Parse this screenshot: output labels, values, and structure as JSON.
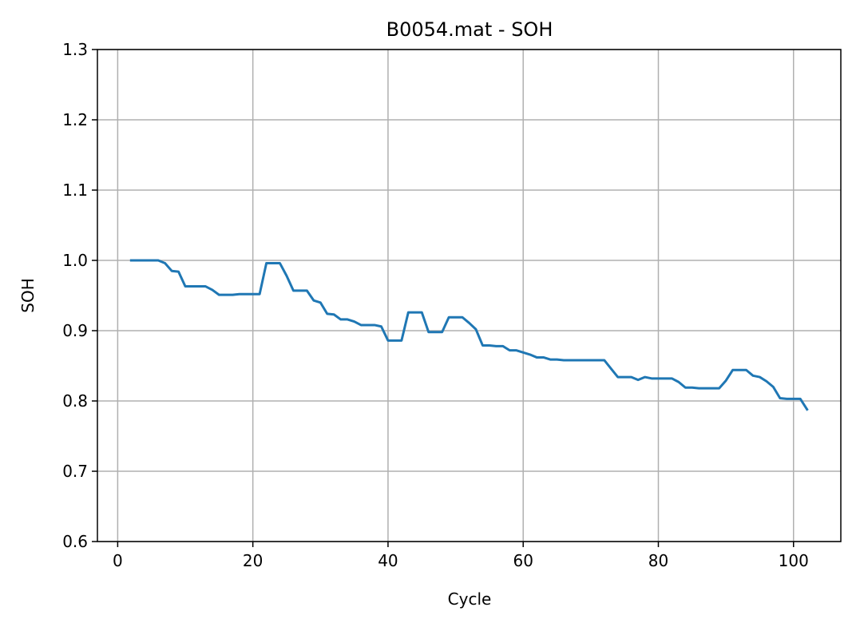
{
  "chart_data": {
    "type": "line",
    "title": "B0054.mat - SOH",
    "xlabel": "Cycle",
    "ylabel": "SOH",
    "xlim": [
      -3,
      107
    ],
    "ylim": [
      0.6,
      1.3
    ],
    "xticks": [
      0,
      20,
      40,
      60,
      80,
      100
    ],
    "yticks": [
      0.6,
      0.7,
      0.8,
      0.9,
      1.0,
      1.1,
      1.2,
      1.3
    ],
    "grid": true,
    "series": [
      {
        "color": "#1f77b4",
        "x": [
          2,
          3,
          4,
          5,
          6,
          7,
          8,
          9,
          10,
          11,
          12,
          13,
          14,
          15,
          16,
          17,
          18,
          19,
          20,
          21,
          22,
          23,
          24,
          25,
          26,
          27,
          28,
          29,
          30,
          31,
          32,
          33,
          34,
          35,
          36,
          37,
          38,
          39,
          40,
          41,
          42,
          43,
          44,
          45,
          46,
          47,
          48,
          49,
          50,
          51,
          52,
          53,
          54,
          55,
          56,
          57,
          58,
          59,
          60,
          61,
          62,
          63,
          64,
          65,
          66,
          67,
          68,
          69,
          70,
          71,
          72,
          73,
          74,
          75,
          76,
          77,
          78,
          79,
          80,
          81,
          82,
          83,
          84,
          85,
          86,
          87,
          88,
          89,
          90,
          91,
          92,
          93,
          94,
          95,
          96,
          97,
          98,
          99,
          100,
          101,
          102
        ],
        "y": [
          1.0,
          1.0,
          1.0,
          1.0,
          1.0,
          0.996,
          0.985,
          0.984,
          0.963,
          0.963,
          0.963,
          0.963,
          0.958,
          0.951,
          0.951,
          0.951,
          0.952,
          0.952,
          0.952,
          0.952,
          0.996,
          0.996,
          0.996,
          0.978,
          0.957,
          0.957,
          0.957,
          0.943,
          0.94,
          0.924,
          0.923,
          0.916,
          0.916,
          0.913,
          0.908,
          0.908,
          0.908,
          0.906,
          0.886,
          0.886,
          0.886,
          0.926,
          0.926,
          0.926,
          0.898,
          0.898,
          0.898,
          0.919,
          0.919,
          0.919,
          0.911,
          0.902,
          0.879,
          0.879,
          0.878,
          0.878,
          0.872,
          0.872,
          0.869,
          0.866,
          0.862,
          0.862,
          0.859,
          0.859,
          0.858,
          0.858,
          0.858,
          0.858,
          0.858,
          0.858,
          0.858,
          0.846,
          0.834,
          0.834,
          0.834,
          0.83,
          0.834,
          0.832,
          0.832,
          0.832,
          0.832,
          0.827,
          0.819,
          0.819,
          0.818,
          0.818,
          0.818,
          0.818,
          0.829,
          0.844,
          0.844,
          0.844,
          0.836,
          0.834,
          0.828,
          0.82,
          0.804,
          0.803,
          0.803,
          0.803,
          0.788
        ]
      }
    ]
  }
}
